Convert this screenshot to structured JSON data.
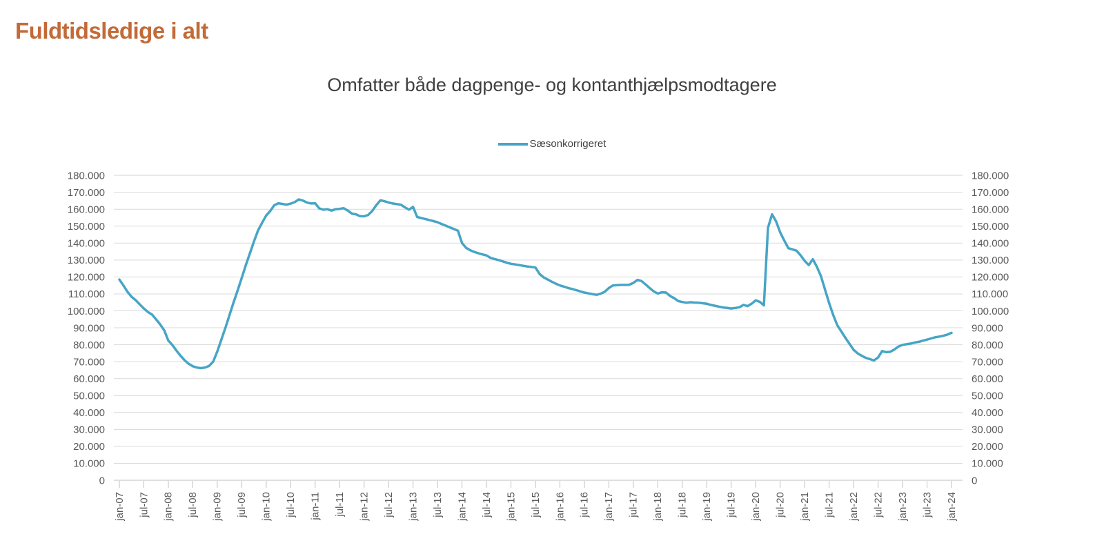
{
  "page": {
    "title": "Fuldtidsledige i alt"
  },
  "chart": {
    "subtitle": "Omfatter både dagpenge- og kontanthjælpsmodtagere",
    "legend": {
      "label": "Sæsonkorrigeret"
    }
  },
  "colors": {
    "title": "#C36A38",
    "subtitle_text": "#404040",
    "series": "#46A5C6",
    "gridline": "#D9D9D9",
    "axis": "#BFBFBF",
    "tick_label": "#595959"
  },
  "chart_data": {
    "type": "line",
    "title": "Omfatter både dagpenge- og kontanthjælpsmodtagere",
    "xlabel": "",
    "ylabel": "",
    "frequency": "monthly",
    "x_start": "jan-07",
    "x_end": "jan-24",
    "ylim": [
      0,
      180000
    ],
    "y_tick_step": 10000,
    "grid": "horizontal",
    "legend_position": "top-center",
    "dual_y_axis_labels": true,
    "y_tick_labels": [
      "0",
      "10.000",
      "20.000",
      "30.000",
      "40.000",
      "50.000",
      "60.000",
      "70.000",
      "80.000",
      "90.000",
      "100.000",
      "110.000",
      "120.000",
      "130.000",
      "140.000",
      "150.000",
      "160.000",
      "170.000",
      "180.000"
    ],
    "x_tick_labels": [
      "jan-07",
      "jul-07",
      "jan-08",
      "jul-08",
      "jan-09",
      "jul-09",
      "jan-10",
      "jul-10",
      "jan-11",
      "jul-11",
      "jan-12",
      "jul-12",
      "jan-13",
      "jul-13",
      "jan-14",
      "jul-14",
      "jan-15",
      "jul-15",
      "jan-16",
      "jul-16",
      "jan-17",
      "jul-17",
      "jan-18",
      "jul-18",
      "jan-19",
      "jul-19",
      "jan-20",
      "jul-20",
      "jan-21",
      "jul-21",
      "jan-22",
      "jul-22",
      "jan-23",
      "jul-23",
      "jan-24"
    ],
    "x_tick_every_n_months": 6,
    "series": [
      {
        "name": "Sæsonkorrigeret",
        "color": "#46A5C6",
        "values": [
          118500,
          115000,
          111200,
          108300,
          106300,
          103800,
          101400,
          99300,
          97800,
          95000,
          92000,
          88500,
          82500,
          79800,
          76500,
          73500,
          70800,
          68700,
          67300,
          66500,
          66200,
          66500,
          67500,
          70000,
          76000,
          83000,
          90000,
          97500,
          105000,
          112000,
          119500,
          127000,
          134000,
          141000,
          147500,
          152000,
          156300,
          159000,
          162400,
          163500,
          163100,
          162700,
          163300,
          164200,
          165800,
          165100,
          163900,
          163400,
          163500,
          160500,
          159700,
          160000,
          159200,
          160000,
          160200,
          160600,
          159200,
          157400,
          157000,
          155900,
          155800,
          156600,
          159000,
          162400,
          165300,
          164700,
          164000,
          163400,
          163000,
          162700,
          161100,
          159700,
          161400,
          155400,
          154800,
          154200,
          153600,
          153000,
          152300,
          151300,
          150300,
          149300,
          148300,
          147300,
          140000,
          137200,
          135800,
          134800,
          134000,
          133300,
          132700,
          131300,
          130600,
          130000,
          129200,
          128400,
          127800,
          127400,
          127000,
          126600,
          126200,
          125900,
          125600,
          121800,
          119800,
          118500,
          117200,
          116000,
          115000,
          114300,
          113500,
          112900,
          112200,
          111500,
          110800,
          110300,
          109800,
          109500,
          110100,
          111300,
          113500,
          115000,
          115200,
          115300,
          115300,
          115400,
          116500,
          118300,
          117600,
          115600,
          113500,
          111500,
          110200,
          111000,
          110800,
          108800,
          107500,
          105800,
          105200,
          104800,
          105100,
          104900,
          104800,
          104500,
          104200,
          103500,
          103000,
          102500,
          102000,
          101700,
          101400,
          101700,
          102100,
          103500,
          102800,
          104200,
          106200,
          105300,
          103200,
          149000,
          157000,
          152800,
          146300,
          141500,
          137000,
          136300,
          135500,
          132800,
          129500,
          127000,
          130500,
          126000,
          120500,
          112500,
          104500,
          97500,
          91500,
          87800,
          84000,
          80500,
          77000,
          74900,
          73500,
          72200,
          71500,
          70700,
          72500,
          76300,
          75600,
          75800,
          77200,
          79000,
          79900,
          80300,
          80700,
          81300,
          81700,
          82400,
          83000,
          83700,
          84400,
          84800,
          85300,
          86000,
          87000
        ]
      }
    ]
  }
}
